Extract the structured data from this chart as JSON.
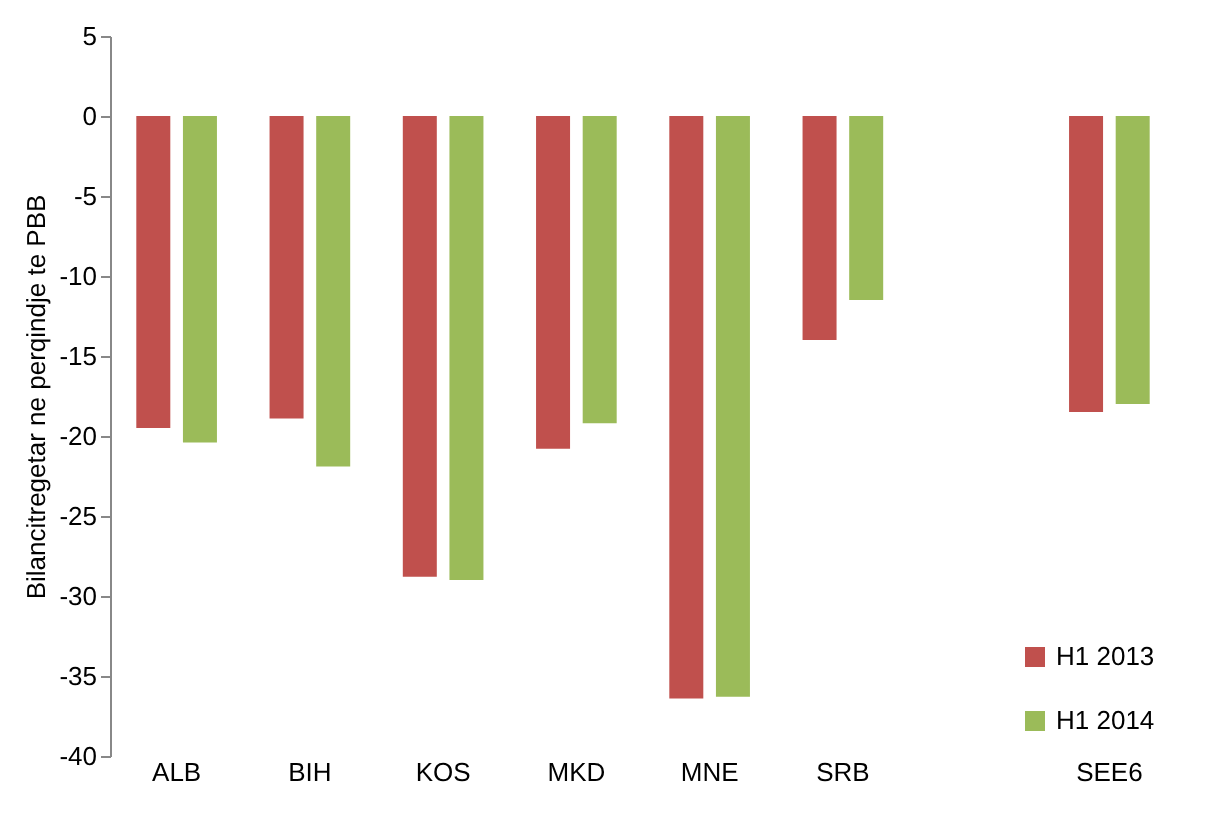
{
  "chart_data": {
    "type": "bar",
    "ylabel": "Bilancitregetar ne perqindje te PBB",
    "categories": [
      "ALB",
      "BIH",
      "KOS",
      "MKD",
      "MNE",
      "SRB",
      null,
      "SEE6"
    ],
    "series": [
      {
        "name": "H1 2013",
        "color": "#c0504d",
        "values": [
          -19.5,
          -18.9,
          -28.8,
          -20.8,
          -36.4,
          -14.0,
          null,
          -18.5
        ]
      },
      {
        "name": "H1 2014",
        "color": "#9bbb59",
        "values": [
          -20.4,
          -21.9,
          -29.0,
          -19.2,
          -36.3,
          -11.5,
          null,
          -18.0
        ]
      }
    ],
    "ylim": [
      -40,
      5
    ],
    "yticks": [
      5,
      0,
      -5,
      -10,
      -15,
      -20,
      -25,
      -30,
      -35,
      -40
    ],
    "grid": false,
    "legend": "bottom right"
  }
}
